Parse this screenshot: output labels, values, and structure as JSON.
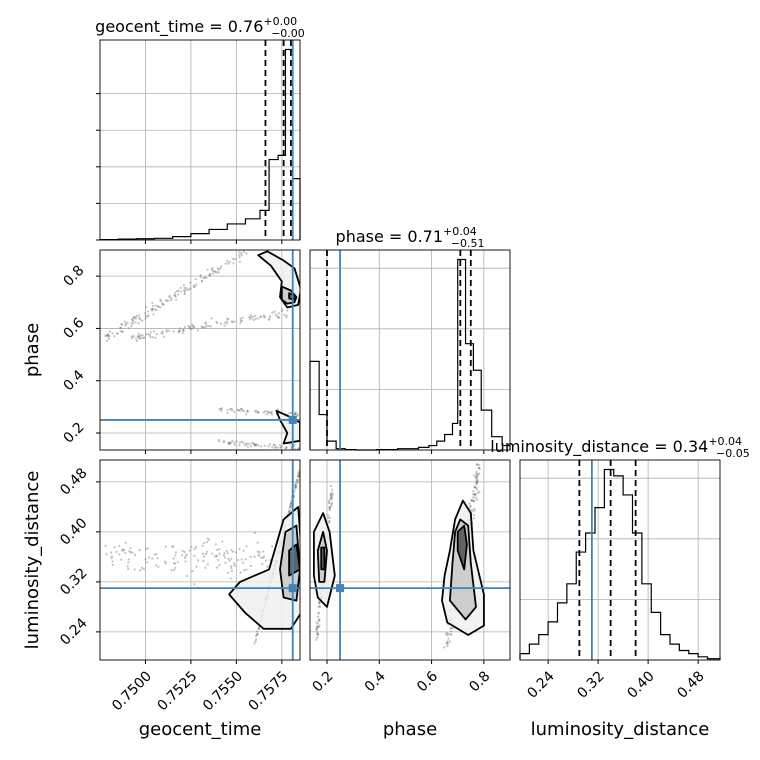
{
  "chart_data": {
    "type": "corner",
    "parameters": [
      "geocent_time",
      "phase",
      "luminosity_distance"
    ],
    "truth_color": "#4682b4",
    "line_color": "#000000",
    "grid": true,
    "titles": [
      {
        "param": "geocent_time",
        "median": "0.76",
        "upper": "+0.00",
        "lower": "−0.00"
      },
      {
        "param": "phase",
        "median": "0.71",
        "upper": "+0.04",
        "lower": "−0.51"
      },
      {
        "param": "luminosity_distance",
        "median": "0.34",
        "upper": "+0.04",
        "lower": "−0.05"
      }
    ],
    "ranges": {
      "geocent_time": [
        0.7475,
        0.7585
      ],
      "phase": [
        0.135,
        0.9
      ],
      "luminosity_distance": [
        0.195,
        0.515
      ]
    },
    "ticks": {
      "geocent_time": [
        "0.7500",
        "0.7525",
        "0.7550",
        "0.7575"
      ],
      "phase": [
        "0.2",
        "0.4",
        "0.6",
        "0.8"
      ],
      "luminosity_distance": [
        "0.24",
        "0.32",
        "0.40",
        "0.48"
      ]
    },
    "truths": {
      "geocent_time": 0.7581,
      "phase": 0.25,
      "luminosity_distance": 0.31
    },
    "quantiles": {
      "geocent_time": [
        0.7566,
        0.7576,
        0.758
      ],
      "phase": [
        0.2,
        0.71,
        0.75
      ],
      "luminosity_distance": [
        0.29,
        0.34,
        0.38
      ]
    },
    "histograms": [
      {
        "param": "geocent_time",
        "edges": [
          0.7475,
          0.7485,
          0.7495,
          0.7505,
          0.7515,
          0.7525,
          0.7535,
          0.7545,
          0.7555,
          0.7563,
          0.7568,
          0.7573,
          0.7577,
          0.7581,
          0.7585
        ],
        "counts": [
          0.1,
          0.2,
          0.3,
          0.4,
          0.8,
          1.5,
          2.5,
          3.8,
          5.0,
          7.0,
          19.0,
          20.0,
          45.0,
          14.5
        ]
      },
      {
        "param": "phase",
        "edges": [
          0.135,
          0.17,
          0.2,
          0.235,
          0.27,
          0.31,
          0.35,
          0.39,
          0.43,
          0.47,
          0.51,
          0.55,
          0.59,
          0.62,
          0.65,
          0.68,
          0.7,
          0.73,
          0.76,
          0.79,
          0.83,
          0.87,
          0.9
        ],
        "counts": [
          20.0,
          8.0,
          2.0,
          0.3,
          0.1,
          0,
          0,
          0.1,
          0.1,
          0.3,
          0.3,
          0.6,
          1.0,
          2.0,
          3.5,
          6.0,
          43.0,
          24.0,
          18.0,
          9.0,
          3.0,
          1.0
        ]
      },
      {
        "param": "luminosity_distance",
        "edges": [
          0.195,
          0.21,
          0.225,
          0.24,
          0.255,
          0.27,
          0.285,
          0.3,
          0.315,
          0.33,
          0.345,
          0.36,
          0.375,
          0.39,
          0.405,
          0.42,
          0.435,
          0.45,
          0.465,
          0.48,
          0.495,
          0.515
        ],
        "counts": [
          1,
          2.5,
          4,
          6,
          9,
          12,
          17,
          20,
          24,
          30,
          29,
          26,
          20,
          12,
          7.5,
          4,
          2.5,
          1.5,
          1,
          0.5,
          0.2
        ]
      }
    ],
    "panels": [
      {
        "x": "geocent_time",
        "y": "phase",
        "contours": [
          [
            [
              0.7567,
              0.895
            ],
            [
              0.7576,
              0.86
            ],
            [
              0.7582,
              0.83
            ],
            [
              0.75855,
              0.75
            ],
            [
              0.7584,
              0.69
            ],
            [
              0.7578,
              0.68
            ],
            [
              0.7574,
              0.72
            ],
            [
              0.7575,
              0.78
            ],
            [
              0.7569,
              0.84
            ],
            [
              0.7562,
              0.88
            ]
          ],
          [
            [
              0.7575,
              0.76
            ],
            [
              0.758,
              0.745
            ],
            [
              0.7583,
              0.72
            ],
            [
              0.7582,
              0.7
            ],
            [
              0.7578,
              0.695
            ],
            [
              0.7575,
              0.71
            ]
          ],
          [
            [
              0.7579,
              0.735
            ],
            [
              0.7582,
              0.725
            ],
            [
              0.7582,
              0.71
            ],
            [
              0.7579,
              0.715
            ]
          ],
          [
            [
              0.7572,
              0.285
            ],
            [
              0.758,
              0.26
            ],
            [
              0.7585,
              0.24
            ],
            [
              0.7585,
              0.17
            ],
            [
              0.7576,
              0.16
            ],
            [
              0.7578,
              0.2
            ],
            [
              0.7574,
              0.25
            ]
          ]
        ],
        "scatter_segments": [
          {
            "from": [
              0.7555,
              0.895
            ],
            "to": [
              0.7478,
              0.56
            ],
            "n": 140,
            "spread": 0.025
          },
          {
            "from": [
              0.7578,
              0.66
            ],
            "to": [
              0.749,
              0.56
            ],
            "n": 110,
            "spread": 0.015
          },
          {
            "from": [
              0.754,
              0.17
            ],
            "to": [
              0.7585,
              0.14
            ],
            "n": 60,
            "spread": 0.01
          },
          {
            "from": [
              0.754,
              0.29
            ],
            "to": [
              0.7585,
              0.27
            ],
            "n": 50,
            "spread": 0.01
          }
        ]
      },
      {
        "x": "geocent_time",
        "y": "luminosity_distance",
        "contours": [
          [
            [
              0.7565,
              0.245
            ],
            [
              0.7555,
              0.27
            ],
            [
              0.7546,
              0.3
            ],
            [
              0.7552,
              0.32
            ],
            [
              0.7568,
              0.34
            ],
            [
              0.7572,
              0.38
            ],
            [
              0.7576,
              0.42
            ],
            [
              0.7584,
              0.44
            ],
            [
              0.75855,
              0.38
            ],
            [
              0.75855,
              0.27
            ],
            [
              0.758,
              0.245
            ]
          ],
          [
            [
              0.7576,
              0.295
            ],
            [
              0.7574,
              0.34
            ],
            [
              0.7577,
              0.4
            ],
            [
              0.7583,
              0.41
            ],
            [
              0.7585,
              0.34
            ],
            [
              0.7583,
              0.29
            ]
          ],
          [
            [
              0.7579,
              0.33
            ],
            [
              0.7579,
              0.37
            ],
            [
              0.7583,
              0.38
            ],
            [
              0.7585,
              0.34
            ]
          ]
        ],
        "scatter_segments": [
          {
            "from": [
              0.748,
              0.36
            ],
            "to": [
              0.7585,
              0.36
            ],
            "n": 180,
            "spread": 0.08
          },
          {
            "from": [
              0.756,
              0.22
            ],
            "to": [
              0.7585,
              0.5
            ],
            "n": 160,
            "spread": 0.01
          }
        ]
      },
      {
        "x": "phase",
        "y": "luminosity_distance",
        "contours": [
          [
            [
              0.165,
              0.295
            ],
            [
              0.15,
              0.33
            ],
            [
              0.15,
              0.4
            ],
            [
              0.185,
              0.43
            ],
            [
              0.21,
              0.4
            ],
            [
              0.23,
              0.33
            ],
            [
              0.2,
              0.28
            ]
          ],
          [
            [
              0.17,
              0.32
            ],
            [
              0.165,
              0.37
            ],
            [
              0.185,
              0.4
            ],
            [
              0.2,
              0.37
            ],
            [
              0.19,
              0.32
            ]
          ],
          [
            [
              0.178,
              0.34
            ],
            [
              0.178,
              0.375
            ],
            [
              0.19,
              0.375
            ],
            [
              0.19,
              0.34
            ]
          ],
          [
            [
              0.65,
              0.33
            ],
            [
              0.64,
              0.29
            ],
            [
              0.66,
              0.255
            ],
            [
              0.74,
              0.235
            ],
            [
              0.8,
              0.25
            ],
            [
              0.8,
              0.3
            ],
            [
              0.76,
              0.37
            ],
            [
              0.75,
              0.43
            ],
            [
              0.72,
              0.45
            ],
            [
              0.69,
              0.42
            ],
            [
              0.67,
              0.37
            ]
          ],
          [
            [
              0.68,
              0.35
            ],
            [
              0.67,
              0.29
            ],
            [
              0.73,
              0.26
            ],
            [
              0.77,
              0.28
            ],
            [
              0.75,
              0.35
            ],
            [
              0.74,
              0.41
            ],
            [
              0.71,
              0.42
            ],
            [
              0.69,
              0.4
            ]
          ],
          [
            [
              0.7,
              0.37
            ],
            [
              0.7,
              0.4
            ],
            [
              0.725,
              0.41
            ],
            [
              0.735,
              0.38
            ],
            [
              0.725,
              0.34
            ]
          ]
        ],
        "scatter_segments": [
          {
            "from": [
              0.16,
              0.23
            ],
            "to": [
              0.22,
              0.47
            ],
            "n": 120,
            "spread": 0.03
          },
          {
            "from": [
              0.66,
              0.22
            ],
            "to": [
              0.78,
              0.5
            ],
            "n": 200,
            "spread": 0.05
          }
        ]
      }
    ]
  }
}
